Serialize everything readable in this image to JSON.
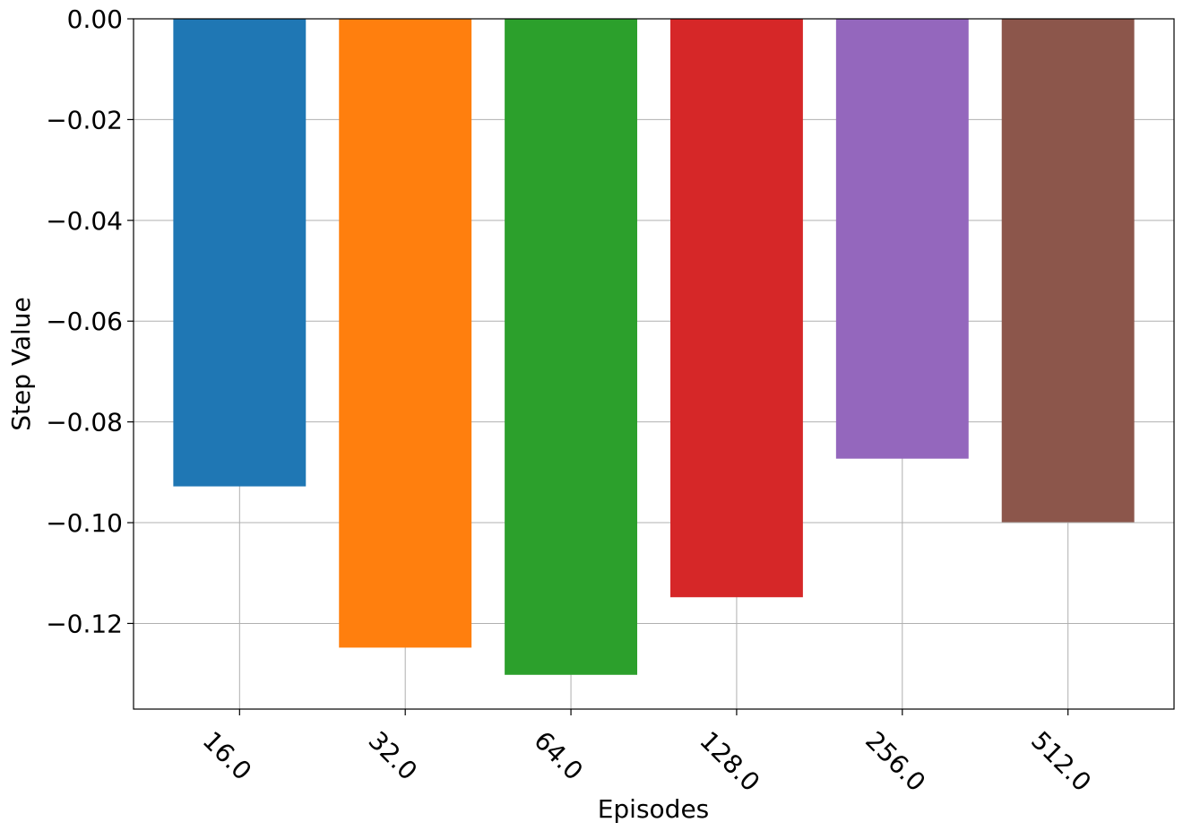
{
  "chart_data": {
    "type": "bar",
    "title": "",
    "xlabel": "Episodes",
    "ylabel": "Step Value",
    "categories": [
      "16.0",
      "32.0",
      "64.0",
      "128.0",
      "256.0",
      "512.0"
    ],
    "values": [
      -0.0928,
      -0.1248,
      -0.1302,
      -0.1148,
      -0.0873,
      -0.0999
    ],
    "colors": [
      "#1f77b4",
      "#ff7f0e",
      "#2ca02c",
      "#d62728",
      "#9467bd",
      "#8c564b"
    ],
    "ylim": [
      -0.137,
      0.0
    ],
    "y_ticks": [
      0.0,
      -0.02,
      -0.04,
      -0.06,
      -0.08,
      -0.1,
      -0.12
    ],
    "y_tick_labels": [
      "0.00",
      "−0.02",
      "−0.04",
      "−0.06",
      "−0.08",
      "−0.10",
      "−0.12"
    ],
    "x_tick_rotation": -45,
    "grid": true,
    "legend": false
  }
}
